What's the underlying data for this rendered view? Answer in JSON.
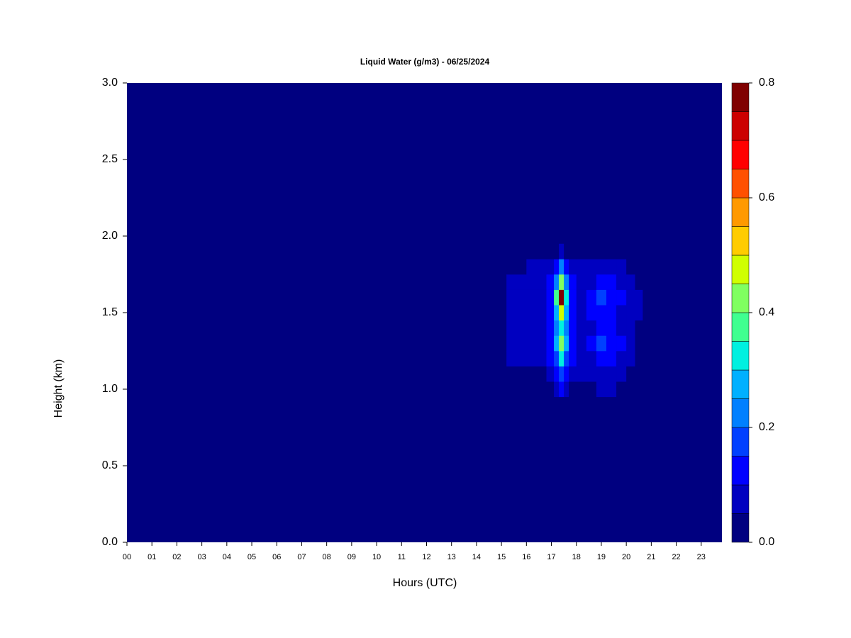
{
  "chart_data": {
    "type": "contour",
    "title": "Liquid Water (g/m3) - 06/25/2024",
    "xlabel": "Hours (UTC)",
    "ylabel": "Height (km)",
    "xlim": [
      0,
      23.83
    ],
    "ylim": [
      0,
      3
    ],
    "xticks": [
      {
        "value": 0,
        "label": "00"
      },
      {
        "value": 1,
        "label": "01"
      },
      {
        "value": 2,
        "label": "02"
      },
      {
        "value": 3,
        "label": "03"
      },
      {
        "value": 4,
        "label": "04"
      },
      {
        "value": 5,
        "label": "05"
      },
      {
        "value": 6,
        "label": "06"
      },
      {
        "value": 7,
        "label": "07"
      },
      {
        "value": 8,
        "label": "08"
      },
      {
        "value": 9,
        "label": "09"
      },
      10,
      11,
      12,
      13,
      14,
      15,
      16,
      17,
      18,
      19,
      20,
      21,
      22,
      23
    ],
    "yticks": [
      {
        "value": 0,
        "label": "0.0"
      },
      0.5,
      {
        "value": 1,
        "label": "1.0"
      },
      1.5,
      {
        "value": 2,
        "label": "2.0"
      },
      2.5,
      {
        "value": 3,
        "label": "3.0"
      }
    ],
    "x": [
      15.4,
      15.8,
      16.2,
      16.6,
      17.0,
      17.2,
      17.4,
      17.6,
      17.8,
      18.2,
      18.6,
      19.0,
      19.4,
      19.8,
      20.2,
      20.5
    ],
    "y": [
      1.0,
      1.1,
      1.2,
      1.3,
      1.4,
      1.5,
      1.6,
      1.7,
      1.8,
      1.9
    ],
    "z": [
      [
        0,
        0,
        0,
        0,
        0.02,
        0.06,
        0.1,
        0.06,
        0.03,
        0.02,
        0.04,
        0.06,
        0.05,
        0.03,
        0,
        0
      ],
      [
        0,
        0.02,
        0.03,
        0.04,
        0.07,
        0.12,
        0.18,
        0.12,
        0.07,
        0.05,
        0.07,
        0.08,
        0.07,
        0.06,
        0.03,
        0
      ],
      [
        0.06,
        0.06,
        0.07,
        0.07,
        0.1,
        0.18,
        0.3,
        0.18,
        0.1,
        0.07,
        0.09,
        0.12,
        0.1,
        0.08,
        0.06,
        0.03
      ],
      [
        0.06,
        0.07,
        0.08,
        0.08,
        0.12,
        0.25,
        0.42,
        0.25,
        0.12,
        0.08,
        0.1,
        0.16,
        0.13,
        0.1,
        0.07,
        0.04
      ],
      [
        0.05,
        0.06,
        0.07,
        0.07,
        0.1,
        0.2,
        0.32,
        0.2,
        0.1,
        0.07,
        0.08,
        0.11,
        0.1,
        0.08,
        0.06,
        0.04
      ],
      [
        0.06,
        0.07,
        0.08,
        0.08,
        0.11,
        0.25,
        0.45,
        0.25,
        0.12,
        0.08,
        0.1,
        0.13,
        0.12,
        0.09,
        0.07,
        0.05
      ],
      [
        0.06,
        0.07,
        0.08,
        0.08,
        0.13,
        0.35,
        0.78,
        0.33,
        0.13,
        0.08,
        0.11,
        0.18,
        0.14,
        0.1,
        0.07,
        0.05
      ],
      [
        0.05,
        0.06,
        0.07,
        0.07,
        0.11,
        0.22,
        0.4,
        0.22,
        0.11,
        0.08,
        0.09,
        0.11,
        0.1,
        0.08,
        0.06,
        0.03
      ],
      [
        0.02,
        0.04,
        0.05,
        0.06,
        0.08,
        0.12,
        0.2,
        0.12,
        0.08,
        0.06,
        0.07,
        0.08,
        0.07,
        0.06,
        0.03,
        0
      ],
      [
        0,
        0,
        0,
        0,
        0.02,
        0.04,
        0.07,
        0.04,
        0.02,
        0,
        0,
        0,
        0,
        0,
        0,
        0
      ]
    ],
    "levels": [
      0,
      0.05,
      0.1,
      0.15,
      0.2,
      0.25,
      0.3,
      0.35,
      0.4,
      0.45,
      0.5,
      0.55,
      0.6,
      0.65,
      0.7,
      0.75,
      0.8
    ],
    "colors": [
      "#000080",
      "#0000c0",
      "#0000ff",
      "#0040ff",
      "#0080ff",
      "#00b0ff",
      "#00f0e0",
      "#40ff90",
      "#80ff60",
      "#d0ff00",
      "#ffcc00",
      "#ff9900",
      "#ff5000",
      "#ff0000",
      "#cc0000",
      "#800000"
    ],
    "cbar_ticks": [
      {
        "value": 0,
        "label": "0.0"
      },
      0.2,
      0.4,
      0.6,
      0.8
    ]
  }
}
